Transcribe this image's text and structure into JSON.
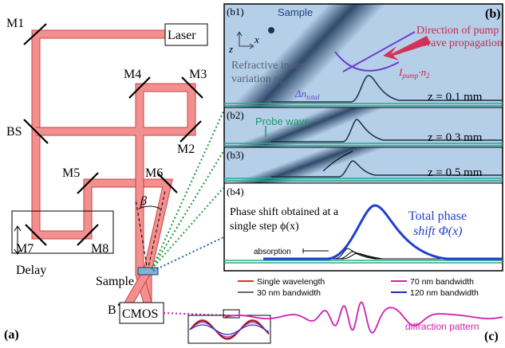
{
  "panel_a": {
    "label": "(a)",
    "laser": "Laser",
    "mirrors": [
      "M1",
      "M2",
      "M3",
      "M4",
      "M5",
      "M6",
      "M7",
      "M8"
    ],
    "beam_splitter": "BS",
    "delay": "Delay",
    "angle": "β",
    "sample": "Sample",
    "block": "B",
    "camera": "CMOS"
  },
  "panel_b": {
    "label": "(b)",
    "subpanels": [
      {
        "label": "(b1)",
        "z": "z = 0.1 mm"
      },
      {
        "label": "(b2)",
        "z": "z = 0.3 mm"
      },
      {
        "label": "(b3)",
        "z": "z = 0.5 mm"
      },
      {
        "label": "(b4)"
      }
    ],
    "sample": "Sample",
    "axis_z": "z",
    "axis_x": "x",
    "pump_direction": [
      "Direction of pump",
      "wave propagation"
    ],
    "refractive_index": [
      "Refractive index",
      "variation n",
      "var"
    ],
    "pump_term": [
      "I",
      "pump",
      "·n",
      "2"
    ],
    "total_index": [
      "Δn",
      "total"
    ],
    "probe_wave": "Probe wave",
    "single_step": [
      "Phase shift obtained at a",
      "single step ϕ(x)"
    ],
    "total_phase": [
      "Total phase",
      "shift Φ(x)"
    ],
    "absorption": "absorption"
  },
  "panel_c": {
    "label": "(c)",
    "legend": [
      "Single wavelength",
      "30 nm bandwidth",
      "70 nm bandwidth",
      "120 nm bandwidth"
    ],
    "pattern": "diffraction pattern"
  }
}
